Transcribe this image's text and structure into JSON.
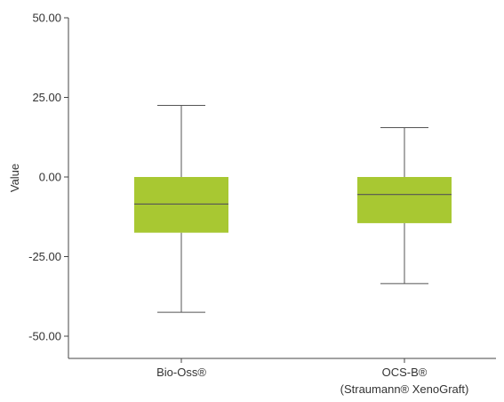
{
  "chart_data": {
    "type": "boxplot",
    "ylabel": "Value",
    "xlabel": "",
    "ylim": [
      -57,
      50
    ],
    "yticks": [
      50,
      25,
      0,
      -25,
      -50
    ],
    "ytick_labels": [
      "50.00",
      "25.00",
      "0.00",
      "-25.00",
      "-50.00"
    ],
    "box_color": "#a8c832",
    "grid": false,
    "categories": [
      {
        "lines": [
          "Bio-Oss®"
        ]
      },
      {
        "lines": [
          "OCS-B®",
          "(Straumann® XenoGraft)"
        ]
      }
    ],
    "boxes": [
      {
        "whisker_low": -42.5,
        "q1": -17.5,
        "median": -8.5,
        "q3": 0.0,
        "whisker_high": 22.5
      },
      {
        "whisker_low": -33.5,
        "q1": -14.5,
        "median": -5.5,
        "q3": 0.0,
        "whisker_high": 15.5
      }
    ]
  }
}
